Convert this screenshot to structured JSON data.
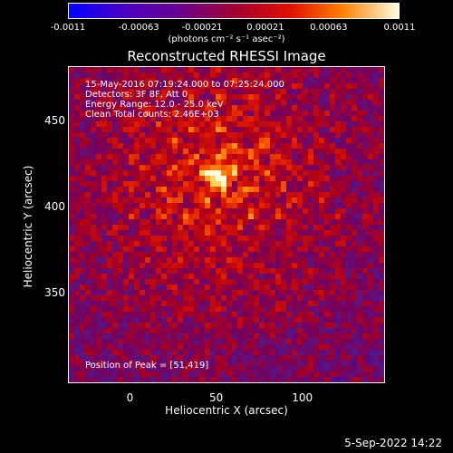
{
  "chart_data": {
    "type": "heatmap",
    "title": "Reconstructed RHESSI Image",
    "xlabel": "Heliocentric X (arcsec)",
    "ylabel": "Heliocentric Y (arcsec)",
    "xlim": [
      -36,
      148
    ],
    "ylim": [
      298,
      482
    ],
    "xticks": [
      0,
      50,
      100
    ],
    "yticks": [
      350,
      400,
      450
    ],
    "colorbar": {
      "units": "(photons cm⁻² s⁻¹ asec⁻²)",
      "min": -0.0011,
      "max": 0.0011,
      "tick_labels": [
        "-0.0011",
        "-0.00063",
        "-0.00021",
        "0.00021",
        "0.00063",
        "0.0011"
      ],
      "tick_values": [
        -0.0011,
        -0.00063,
        -0.00021,
        0.00021,
        0.00063,
        0.0011
      ]
    },
    "peak": {
      "x": 51,
      "y": 419
    },
    "annotations": {
      "time": "15-May-2016 07:19:24.000 to 07:25:24.000",
      "detectors": "Detectors: 3F 8F, Att 0",
      "energy": "Energy Range: 12.0 - 25.0 keV",
      "clean": "Clean     Total counts: 2.46E+03",
      "peak_label": "Position of Peak = [51,419]"
    }
  },
  "footer": {
    "date": "5-Sep-2022 14:22"
  },
  "colors": {
    "background": "#000000",
    "foreground": "#ffffff"
  }
}
